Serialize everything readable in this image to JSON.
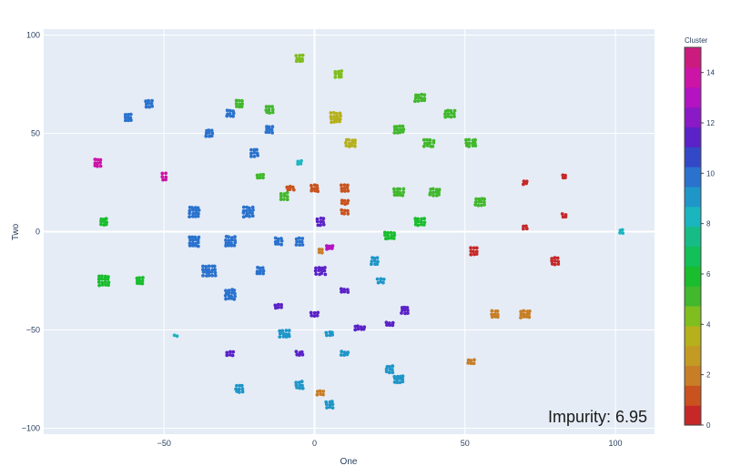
{
  "chart_data": {
    "type": "scatter",
    "xlabel": "One",
    "ylabel": "Two",
    "xlim": [
      -90,
      113
    ],
    "ylim": [
      -103,
      103
    ],
    "x_ticks": [
      -50,
      0,
      50,
      100
    ],
    "y_ticks": [
      -100,
      -50,
      0,
      50,
      100
    ],
    "x_tick_labels": [
      "−50",
      "0",
      "50",
      "100"
    ],
    "y_tick_labels": [
      "−100",
      "−50",
      "0",
      "50",
      "100"
    ],
    "grid": true,
    "colorbar": {
      "title": "Cluster",
      "range": [
        0,
        15
      ],
      "ticks": [
        0,
        2,
        4,
        6,
        8,
        10,
        12,
        14
      ],
      "colors": [
        "#c62828",
        "#c9521e",
        "#c77e26",
        "#c39a24",
        "#b6b01b",
        "#7fbe1e",
        "#42b82c",
        "#19bd2d",
        "#12bf58",
        "#16bb86",
        "#1ab5be",
        "#1f96c8",
        "#2a72cd",
        "#3348c6",
        "#5a22c7",
        "#8a19c6",
        "#b313c1",
        "#cc14a6",
        "#cc1b7e"
      ]
    },
    "annotation": "Impurity: 6.95",
    "groups": [
      {
        "x": 2,
        "y": -82,
        "cluster": 2,
        "rows": 2,
        "cols": 3
      },
      {
        "x": 2,
        "y": -10,
        "cluster": 2,
        "rows": 2,
        "cols": 2
      },
      {
        "x": -5,
        "y": -62,
        "cluster": 12,
        "rows": 2,
        "cols": 3
      },
      {
        "x": -28,
        "y": -62,
        "cluster": 12,
        "rows": 2,
        "cols": 3
      },
      {
        "x": -12,
        "y": -38,
        "cluster": 12,
        "rows": 2,
        "cols": 3
      },
      {
        "x": 0,
        "y": -42,
        "cluster": 12,
        "rows": 2,
        "cols": 3
      },
      {
        "x": -50,
        "y": 28,
        "cluster": 14,
        "rows": 3,
        "cols": 2
      },
      {
        "x": -72,
        "y": 35,
        "cluster": 14,
        "rows": 3,
        "cols": 3
      },
      {
        "x": 83,
        "y": 28,
        "cluster": 0,
        "rows": 2,
        "cols": 2
      },
      {
        "x": 70,
        "y": 25,
        "cluster": 0,
        "rows": 2,
        "cols": 2
      },
      {
        "x": 83,
        "y": 8,
        "cluster": 0,
        "rows": 2,
        "cols": 2
      },
      {
        "x": 70,
        "y": 2,
        "cluster": 0,
        "rows": 2,
        "cols": 2
      },
      {
        "x": 53,
        "y": -10,
        "cluster": 0,
        "rows": 3,
        "cols": 3
      },
      {
        "x": 80,
        "y": -15,
        "cluster": 0,
        "rows": 3,
        "cols": 3
      },
      {
        "x": 52,
        "y": -66,
        "cluster": 2,
        "rows": 2,
        "cols": 3
      },
      {
        "x": 70,
        "y": -42,
        "cluster": 2,
        "rows": 3,
        "cols": 4
      },
      {
        "x": 60,
        "y": -42,
        "cluster": 2,
        "rows": 3,
        "cols": 3
      },
      {
        "x": 102,
        "y": 0,
        "cluster": 8,
        "rows": 2,
        "cols": 2
      },
      {
        "x": -46,
        "y": -53,
        "cluster": 8,
        "rows": 1,
        "cols": 2
      },
      {
        "x": -5,
        "y": 35,
        "cluster": 8,
        "rows": 2,
        "cols": 2
      },
      {
        "x": 2,
        "y": 5,
        "cluster": 12,
        "rows": 3,
        "cols": 3
      },
      {
        "x": 10,
        "y": -30,
        "cluster": 12,
        "rows": 2,
        "cols": 3
      },
      {
        "x": 30,
        "y": -40,
        "cluster": 12,
        "rows": 3,
        "cols": 3
      },
      {
        "x": 15,
        "y": -49,
        "cluster": 12,
        "rows": 2,
        "cols": 4
      },
      {
        "x": 25,
        "y": -47,
        "cluster": 12,
        "rows": 2,
        "cols": 3
      },
      {
        "x": 2,
        "y": -20,
        "cluster": 12,
        "rows": 3,
        "cols": 4
      },
      {
        "x": -70,
        "y": 5,
        "cluster": 6,
        "rows": 3,
        "cols": 3
      },
      {
        "x": -70,
        "y": -25,
        "cluster": 6,
        "rows": 4,
        "cols": 4
      },
      {
        "x": -58,
        "y": -25,
        "cluster": 6,
        "rows": 3,
        "cols": 3
      },
      {
        "x": -40,
        "y": 10,
        "cluster": 10,
        "rows": 4,
        "cols": 4
      },
      {
        "x": -22,
        "y": 10,
        "cluster": 10,
        "rows": 4,
        "cols": 4
      },
      {
        "x": -40,
        "y": -5,
        "cluster": 10,
        "rows": 4,
        "cols": 4
      },
      {
        "x": -28,
        "y": -5,
        "cluster": 10,
        "rows": 4,
        "cols": 4
      },
      {
        "x": -35,
        "y": -20,
        "cluster": 10,
        "rows": 4,
        "cols": 5
      },
      {
        "x": -28,
        "y": -32,
        "cluster": 10,
        "rows": 4,
        "cols": 4
      },
      {
        "x": -18,
        "y": -20,
        "cluster": 10,
        "rows": 3,
        "cols": 3
      },
      {
        "x": -12,
        "y": -5,
        "cluster": 10,
        "rows": 3,
        "cols": 3
      },
      {
        "x": -5,
        "y": -5,
        "cluster": 10,
        "rows": 3,
        "cols": 3
      },
      {
        "x": -55,
        "y": 65,
        "cluster": 10,
        "rows": 3,
        "cols": 3
      },
      {
        "x": -62,
        "y": 58,
        "cluster": 10,
        "rows": 3,
        "cols": 3
      },
      {
        "x": -28,
        "y": 60,
        "cluster": 10,
        "rows": 3,
        "cols": 3
      },
      {
        "x": -35,
        "y": 50,
        "cluster": 10,
        "rows": 3,
        "cols": 3
      },
      {
        "x": -20,
        "y": 40,
        "cluster": 10,
        "rows": 3,
        "cols": 3
      },
      {
        "x": -15,
        "y": 52,
        "cluster": 10,
        "rows": 3,
        "cols": 3
      },
      {
        "x": 20,
        "y": -15,
        "cluster": 9,
        "rows": 3,
        "cols": 3
      },
      {
        "x": 22,
        "y": -25,
        "cluster": 9,
        "rows": 2,
        "cols": 3
      },
      {
        "x": 25,
        "y": -70,
        "cluster": 9,
        "rows": 3,
        "cols": 3
      },
      {
        "x": 28,
        "y": -75,
        "cluster": 9,
        "rows": 3,
        "cols": 4
      },
      {
        "x": -10,
        "y": -52,
        "cluster": 9,
        "rows": 3,
        "cols": 4
      },
      {
        "x": -5,
        "y": -78,
        "cluster": 9,
        "rows": 3,
        "cols": 3
      },
      {
        "x": 5,
        "y": -52,
        "cluster": 9,
        "rows": 2,
        "cols": 3
      },
      {
        "x": 10,
        "y": -62,
        "cluster": 9,
        "rows": 2,
        "cols": 3
      },
      {
        "x": -25,
        "y": -80,
        "cluster": 9,
        "rows": 3,
        "cols": 3
      },
      {
        "x": 5,
        "y": -88,
        "cluster": 9,
        "rows": 3,
        "cols": 3
      },
      {
        "x": -5,
        "y": 88,
        "cluster": 4,
        "rows": 3,
        "cols": 3
      },
      {
        "x": 8,
        "y": 80,
        "cluster": 4,
        "rows": 3,
        "cols": 3
      },
      {
        "x": 7,
        "y": 58,
        "cluster": 3,
        "rows": 4,
        "cols": 4
      },
      {
        "x": 12,
        "y": 45,
        "cluster": 3,
        "rows": 3,
        "cols": 4
      },
      {
        "x": 35,
        "y": 68,
        "cluster": 5,
        "rows": 3,
        "cols": 4
      },
      {
        "x": 28,
        "y": 52,
        "cluster": 5,
        "rows": 3,
        "cols": 4
      },
      {
        "x": 45,
        "y": 60,
        "cluster": 5,
        "rows": 3,
        "cols": 4
      },
      {
        "x": 52,
        "y": 45,
        "cluster": 5,
        "rows": 3,
        "cols": 4
      },
      {
        "x": 38,
        "y": 45,
        "cluster": 5,
        "rows": 3,
        "cols": 4
      },
      {
        "x": 28,
        "y": 20,
        "cluster": 5,
        "rows": 3,
        "cols": 4
      },
      {
        "x": 40,
        "y": 20,
        "cluster": 5,
        "rows": 3,
        "cols": 4
      },
      {
        "x": 55,
        "y": 15,
        "cluster": 5,
        "rows": 3,
        "cols": 4
      },
      {
        "x": 35,
        "y": 5,
        "cluster": 6,
        "rows": 3,
        "cols": 4
      },
      {
        "x": 25,
        "y": -2,
        "cluster": 6,
        "rows": 3,
        "cols": 4
      },
      {
        "x": -25,
        "y": 65,
        "cluster": 5,
        "rows": 3,
        "cols": 3
      },
      {
        "x": -15,
        "y": 62,
        "cluster": 5,
        "rows": 3,
        "cols": 3
      },
      {
        "x": -18,
        "y": 28,
        "cluster": 5,
        "rows": 2,
        "cols": 3
      },
      {
        "x": -10,
        "y": 18,
        "cluster": 5,
        "rows": 3,
        "cols": 3
      },
      {
        "x": 0,
        "y": 22,
        "cluster": 1,
        "rows": 3,
        "cols": 3
      },
      {
        "x": 10,
        "y": 22,
        "cluster": 1,
        "rows": 3,
        "cols": 3
      },
      {
        "x": -8,
        "y": 22,
        "cluster": 1,
        "rows": 2,
        "cols": 3
      },
      {
        "x": 10,
        "y": 15,
        "cluster": 1,
        "rows": 2,
        "cols": 3
      },
      {
        "x": 10,
        "y": 10,
        "cluster": 1,
        "rows": 2,
        "cols": 3
      },
      {
        "x": 5,
        "y": -8,
        "cluster": 13,
        "rows": 2,
        "cols": 3
      }
    ]
  }
}
